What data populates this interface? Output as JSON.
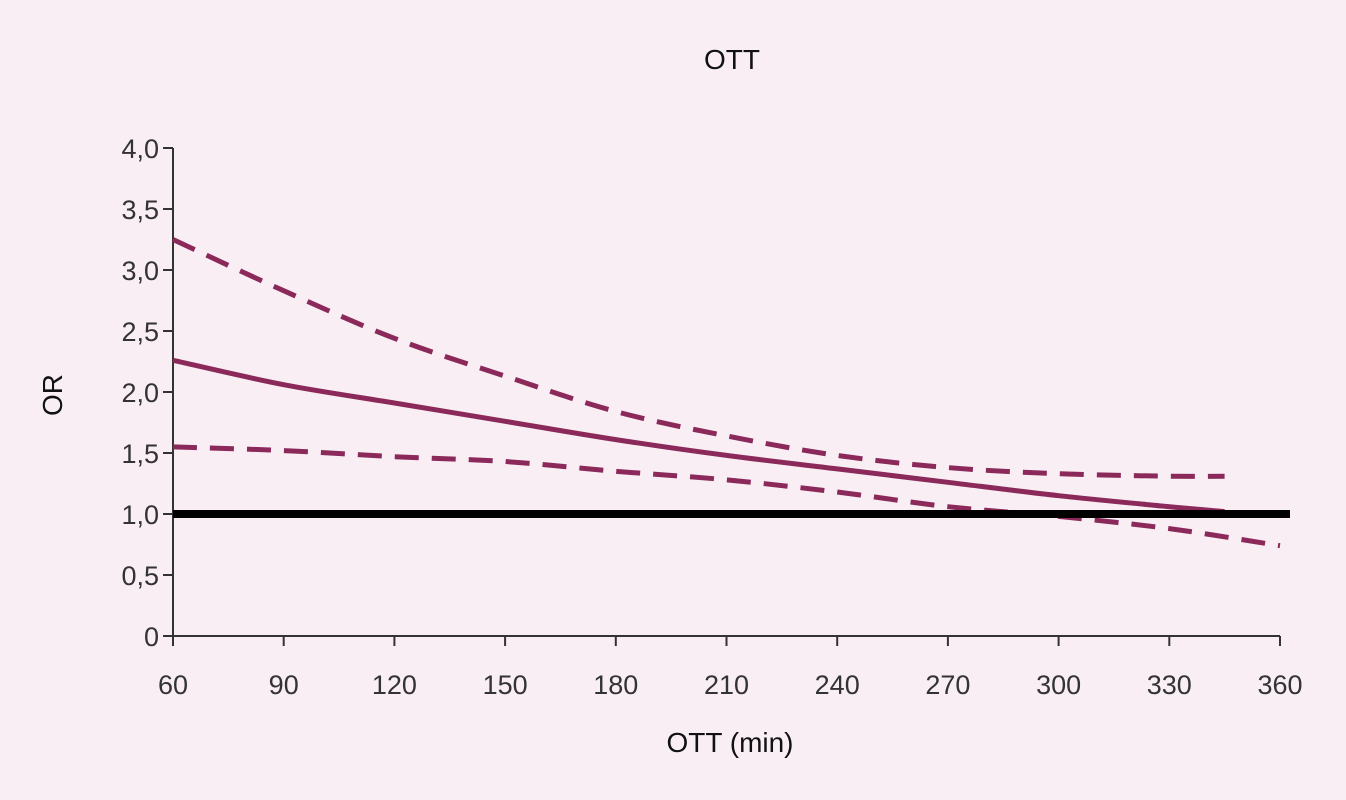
{
  "chart_data": {
    "type": "line",
    "title": "OTT",
    "xlabel": "OTT (min)",
    "ylabel": "OR",
    "xlim": [
      60,
      360
    ],
    "ylim": [
      0,
      4
    ],
    "x_ticks": [
      60,
      90,
      120,
      150,
      180,
      210,
      240,
      270,
      300,
      330,
      360
    ],
    "y_ticks": [
      0,
      0.5,
      1,
      1.5,
      2,
      2.5,
      3,
      3.5,
      4
    ],
    "y_tick_labels": [
      "0",
      "0,5",
      "1,0",
      "1,5",
      "2,0",
      "2,5",
      "3,0",
      "3,5",
      "4,0"
    ],
    "grid": false,
    "reference_line": {
      "y": 1.0,
      "color": "#000000"
    },
    "series": [
      {
        "style": "solid",
        "color": "#8b2a5a",
        "x": [
          60,
          90,
          120,
          150,
          180,
          210,
          240,
          270,
          300,
          330,
          345
        ],
        "y": [
          2.26,
          2.06,
          1.91,
          1.76,
          1.61,
          1.48,
          1.37,
          1.26,
          1.15,
          1.06,
          1.02
        ]
      },
      {
        "style": "dashed",
        "color": "#8b2a5a",
        "x": [
          60,
          90,
          120,
          150,
          180,
          210,
          240,
          270,
          300,
          330,
          345
        ],
        "y": [
          3.25,
          2.83,
          2.44,
          2.13,
          1.84,
          1.64,
          1.48,
          1.38,
          1.33,
          1.31,
          1.31
        ]
      },
      {
        "style": "dashed",
        "color": "#8b2a5a",
        "x": [
          60,
          90,
          120,
          150,
          180,
          210,
          240,
          270,
          300,
          330,
          360
        ],
        "y": [
          1.55,
          1.52,
          1.47,
          1.43,
          1.35,
          1.28,
          1.18,
          1.06,
          0.98,
          0.88,
          0.74
        ]
      }
    ]
  }
}
